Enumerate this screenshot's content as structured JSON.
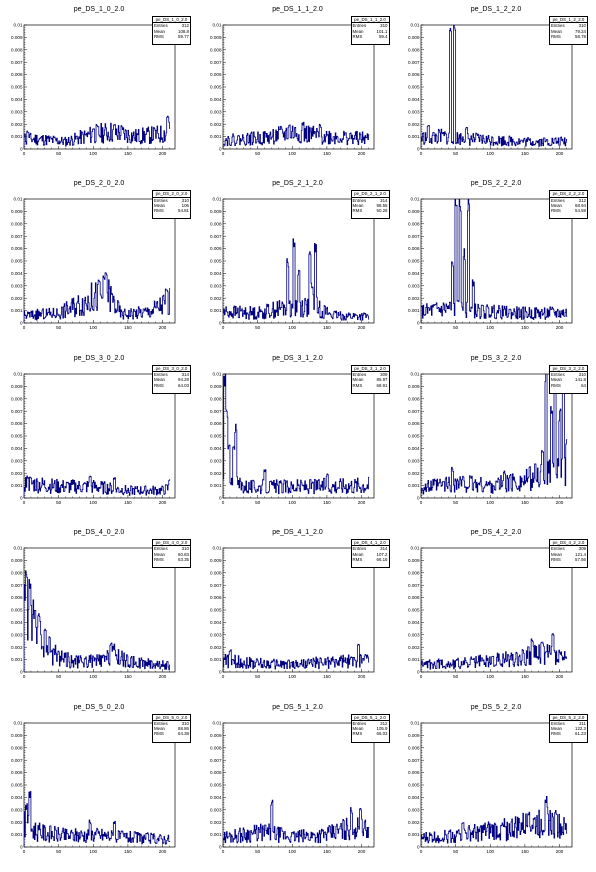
{
  "chart_data": [
    {
      "type": "line",
      "title": "pe_DS_1_0_2.0",
      "stats": {
        "name": "pe_DS_1_0_2.0",
        "entries": "312",
        "mean": "108.8",
        "rms": "59.77"
      },
      "x": [
        0,
        210
      ],
      "xlim": [
        0,
        218
      ],
      "ylim": [
        0,
        0.01
      ],
      "xticks": [
        "0",
        "50",
        "100",
        "150",
        "200"
      ],
      "yticks": [
        "0",
        "0.001",
        "0.002",
        "0.003",
        "0.004",
        "0.005",
        "0.006",
        "0.007",
        "0.008",
        "0.009",
        "0.01"
      ],
      "profile": [
        [
          0,
          0.0008
        ],
        [
          20,
          0.0008
        ],
        [
          60,
          0.0006
        ],
        [
          100,
          0.0012
        ],
        [
          130,
          0.0014
        ],
        [
          160,
          0.001
        ],
        [
          200,
          0.0012
        ],
        [
          215,
          0.0015
        ]
      ],
      "spikes": [
        [
          5,
          0.0015
        ],
        [
          100,
          0.0018
        ],
        [
          130,
          0.002
        ],
        [
          207,
          0.0028
        ]
      ],
      "seed": 11
    },
    {
      "type": "line",
      "title": "pe_DS_1_1_2.0",
      "stats": {
        "name": "pe_DS_1_1_2.0",
        "entries": "310",
        "mean": "101.1",
        "rms": "59.4"
      },
      "x": [
        0,
        210
      ],
      "xlim": [
        0,
        218
      ],
      "ylim": [
        0,
        0.01
      ],
      "xticks": [
        "0",
        "50",
        "100",
        "150",
        "200"
      ],
      "yticks": [
        "0",
        "0.001",
        "0.002",
        "0.003",
        "0.004",
        "0.005",
        "0.006",
        "0.007",
        "0.008",
        "0.009",
        "0.01"
      ],
      "profile": [
        [
          0,
          0.0007
        ],
        [
          60,
          0.0009
        ],
        [
          100,
          0.0013
        ],
        [
          150,
          0.001
        ],
        [
          215,
          0.0008
        ]
      ],
      "spikes": [
        [
          95,
          0.002
        ],
        [
          115,
          0.0022
        ],
        [
          140,
          0.002
        ]
      ],
      "seed": 22
    },
    {
      "type": "line",
      "title": "pe_DS_1_2_2.0",
      "stats": {
        "name": "pe_DS_1_2_2.0",
        "entries": "310",
        "mean": "79.24",
        "rms": "58.78"
      },
      "x": [
        0,
        210
      ],
      "xlim": [
        0,
        218
      ],
      "ylim": [
        0,
        0.01
      ],
      "xticks": [
        "0",
        "50",
        "100",
        "150",
        "200"
      ],
      "yticks": [
        "0",
        "0.001",
        "0.002",
        "0.003",
        "0.004",
        "0.005",
        "0.006",
        "0.007",
        "0.008",
        "0.009",
        "0.01"
      ],
      "profile": [
        [
          0,
          0.0009
        ],
        [
          30,
          0.001
        ],
        [
          70,
          0.0008
        ],
        [
          150,
          0.0006
        ],
        [
          215,
          0.0006
        ]
      ],
      "spikes": [
        [
          10,
          0.002
        ],
        [
          42,
          0.0105
        ],
        [
          48,
          0.0105
        ],
        [
          65,
          0.0018
        ]
      ],
      "seed": 33
    },
    {
      "type": "line",
      "title": "pe_DS_2_0_2.0",
      "stats": {
        "name": "pe_DS_2_0_2.0",
        "entries": "310",
        "mean": "106",
        "rms": "54.81"
      },
      "x": [
        0,
        210
      ],
      "xlim": [
        0,
        218
      ],
      "ylim": [
        0,
        0.01
      ],
      "xticks": [
        "0",
        "50",
        "100",
        "150",
        "200"
      ],
      "yticks": [
        "0",
        "0.001",
        "0.002",
        "0.003",
        "0.004",
        "0.005",
        "0.006",
        "0.007",
        "0.008",
        "0.009",
        "0.01"
      ],
      "profile": [
        [
          0,
          0.0006
        ],
        [
          50,
          0.0008
        ],
        [
          90,
          0.0018
        ],
        [
          120,
          0.0025
        ],
        [
          140,
          0.0007
        ],
        [
          180,
          0.0009
        ],
        [
          200,
          0.0015
        ],
        [
          215,
          0.0018
        ]
      ],
      "spikes": [
        [
          108,
          0.0035
        ],
        [
          118,
          0.0043
        ],
        [
          205,
          0.0028
        ]
      ],
      "seed": 44
    },
    {
      "type": "line",
      "title": "pe_DS_2_1_2.0",
      "stats": {
        "name": "pe_DS_2_1_2.0",
        "entries": "314",
        "mean": "98.55",
        "rms": "50.26"
      },
      "x": [
        0,
        210
      ],
      "xlim": [
        0,
        218
      ],
      "ylim": [
        0,
        0.01
      ],
      "xticks": [
        "0",
        "50",
        "100",
        "150",
        "200"
      ],
      "yticks": [
        "0",
        "0.001",
        "0.002",
        "0.003",
        "0.004",
        "0.005",
        "0.006",
        "0.007",
        "0.008",
        "0.009",
        "0.01"
      ],
      "profile": [
        [
          0,
          0.0009
        ],
        [
          50,
          0.0008
        ],
        [
          85,
          0.0012
        ],
        [
          130,
          0.0014
        ],
        [
          160,
          0.0006
        ],
        [
          215,
          0.0005
        ]
      ],
      "spikes": [
        [
          93,
          0.0052
        ],
        [
          102,
          0.0068
        ],
        [
          109,
          0.0045
        ],
        [
          125,
          0.0058
        ],
        [
          133,
          0.0067
        ],
        [
          128,
          0.0033
        ]
      ],
      "seed": 55
    },
    {
      "type": "line",
      "title": "pe_DS_2_2_2.0",
      "stats": {
        "name": "pe_DS_2_2_2.0",
        "entries": "312",
        "mean": "68.94",
        "rms": "54.59"
      },
      "x": [
        0,
        210
      ],
      "xlim": [
        0,
        218
      ],
      "ylim": [
        0,
        0.01
      ],
      "xticks": [
        "0",
        "50",
        "100",
        "150",
        "200"
      ],
      "yticks": [
        "0",
        "0.001",
        "0.002",
        "0.003",
        "0.004",
        "0.005",
        "0.006",
        "0.007",
        "0.008",
        "0.009",
        "0.01"
      ],
      "profile": [
        [
          0,
          0.0009
        ],
        [
          40,
          0.0012
        ],
        [
          70,
          0.001
        ],
        [
          130,
          0.0008
        ],
        [
          215,
          0.0008
        ]
      ],
      "spikes": [
        [
          45,
          0.0052
        ],
        [
          50,
          0.0105
        ],
        [
          56,
          0.0105
        ],
        [
          62,
          0.006
        ],
        [
          68,
          0.0105
        ],
        [
          75,
          0.0035
        ]
      ],
      "seed": 66
    },
    {
      "type": "line",
      "title": "pe_DS_3_0_2.0",
      "stats": {
        "name": "pe_DS_3_0_2.0",
        "entries": "314",
        "mean": "94.28",
        "rms": "64.03"
      },
      "x": [
        0,
        210
      ],
      "xlim": [
        0,
        218
      ],
      "ylim": [
        0,
        0.01
      ],
      "xticks": [
        "0",
        "50",
        "100",
        "150",
        "200"
      ],
      "yticks": [
        "0",
        "0.001",
        "0.002",
        "0.003",
        "0.004",
        "0.005",
        "0.006",
        "0.007",
        "0.008",
        "0.009",
        "0.01"
      ],
      "profile": [
        [
          0,
          0.0012
        ],
        [
          50,
          0.0009
        ],
        [
          100,
          0.0009
        ],
        [
          150,
          0.0006
        ],
        [
          200,
          0.0006
        ],
        [
          215,
          0.0009
        ]
      ],
      "spikes": [
        [
          5,
          0.0018
        ],
        [
          95,
          0.0018
        ],
        [
          130,
          0.0017
        ],
        [
          210,
          0.0016
        ]
      ],
      "seed": 77
    },
    {
      "type": "line",
      "title": "pe_DS_3_1_2.0",
      "stats": {
        "name": "pe_DS_3_1_2.0",
        "entries": "309",
        "mean": "85.97",
        "rms": "68.91"
      },
      "x": [
        0,
        210
      ],
      "xlim": [
        0,
        218
      ],
      "ylim": [
        0,
        0.01
      ],
      "xticks": [
        "0",
        "50",
        "100",
        "150",
        "200"
      ],
      "yticks": [
        "0",
        "0.001",
        "0.002",
        "0.003",
        "0.004",
        "0.005",
        "0.006",
        "0.007",
        "0.008",
        "0.009",
        "0.01"
      ],
      "profile": [
        [
          0,
          0.0012
        ],
        [
          40,
          0.0009
        ],
        [
          100,
          0.0009
        ],
        [
          160,
          0.001
        ],
        [
          215,
          0.0011
        ]
      ],
      "spikes": [
        [
          2,
          0.0105
        ],
        [
          5,
          0.0075
        ],
        [
          8,
          0.0045
        ],
        [
          18,
          0.0062
        ],
        [
          15,
          0.0042
        ],
        [
          60,
          0.0023
        ],
        [
          150,
          0.002
        ]
      ],
      "seed": 88
    },
    {
      "type": "line",
      "title": "pe_DS_3_2_2.0",
      "stats": {
        "name": "pe_DS_3_2_2.0",
        "entries": "310",
        "mean": "141.8",
        "rms": "64"
      },
      "x": [
        0,
        210
      ],
      "xlim": [
        0,
        218
      ],
      "ylim": [
        0,
        0.01
      ],
      "xticks": [
        "0",
        "50",
        "100",
        "150",
        "200"
      ],
      "yticks": [
        "0",
        "0.001",
        "0.002",
        "0.003",
        "0.004",
        "0.005",
        "0.006",
        "0.007",
        "0.008",
        "0.009",
        "0.01"
      ],
      "profile": [
        [
          0,
          0.0008
        ],
        [
          50,
          0.0012
        ],
        [
          100,
          0.001
        ],
        [
          150,
          0.0014
        ],
        [
          175,
          0.002
        ],
        [
          215,
          0.002
        ]
      ],
      "spikes": [
        [
          45,
          0.0025
        ],
        [
          120,
          0.0022
        ],
        [
          175,
          0.004
        ],
        [
          180,
          0.0105
        ],
        [
          188,
          0.008
        ],
        [
          193,
          0.0105
        ],
        [
          200,
          0.0072
        ],
        [
          205,
          0.0105
        ],
        [
          210,
          0.005
        ]
      ],
      "seed": 99
    },
    {
      "type": "line",
      "title": "pe_DS_4_0_2.0",
      "stats": {
        "name": "pe_DS_4_0_2.0",
        "entries": "310",
        "mean": "60.83",
        "rms": "63.35"
      },
      "x": [
        0,
        210
      ],
      "xlim": [
        0,
        218
      ],
      "ylim": [
        0,
        0.01
      ],
      "xticks": [
        "0",
        "50",
        "100",
        "150",
        "200"
      ],
      "yticks": [
        "0",
        "0.001",
        "0.002",
        "0.003",
        "0.004",
        "0.005",
        "0.006",
        "0.007",
        "0.008",
        "0.009",
        "0.01"
      ],
      "profile": [
        [
          0,
          0.006
        ],
        [
          10,
          0.004
        ],
        [
          25,
          0.0025
        ],
        [
          40,
          0.0016
        ],
        [
          70,
          0.0008
        ],
        [
          115,
          0.0009
        ],
        [
          130,
          0.0014
        ],
        [
          150,
          0.0008
        ],
        [
          215,
          0.0005
        ]
      ],
      "spikes": [
        [
          3,
          0.0082
        ],
        [
          8,
          0.0072
        ],
        [
          15,
          0.005
        ],
        [
          22,
          0.0045
        ],
        [
          30,
          0.0035
        ],
        [
          125,
          0.0025
        ]
      ],
      "seed": 111
    },
    {
      "type": "line",
      "title": "pe_DS_4_1_2.0",
      "stats": {
        "name": "pe_DS_4_1_2.0",
        "entries": "314",
        "mean": "107.2",
        "rms": "66.16"
      },
      "x": [
        0,
        210
      ],
      "xlim": [
        0,
        218
      ],
      "ylim": [
        0,
        0.01
      ],
      "xticks": [
        "0",
        "50",
        "100",
        "150",
        "200"
      ],
      "yticks": [
        "0",
        "0.001",
        "0.002",
        "0.003",
        "0.004",
        "0.005",
        "0.006",
        "0.007",
        "0.008",
        "0.009",
        "0.01"
      ],
      "profile": [
        [
          0,
          0.0009
        ],
        [
          50,
          0.0007
        ],
        [
          100,
          0.0006
        ],
        [
          150,
          0.0008
        ],
        [
          215,
          0.0009
        ]
      ],
      "spikes": [
        [
          10,
          0.0018
        ],
        [
          195,
          0.0025
        ],
        [
          205,
          0.0015
        ]
      ],
      "seed": 122
    },
    {
      "type": "line",
      "title": "pe_DS_4_2_2.0",
      "stats": {
        "name": "pe_DS_4_2_2.0",
        "entries": "309",
        "mean": "121.4",
        "rms": "57.56"
      },
      "x": [
        0,
        210
      ],
      "xlim": [
        0,
        218
      ],
      "ylim": [
        0,
        0.01
      ],
      "xticks": [
        "0",
        "50",
        "100",
        "150",
        "200"
      ],
      "yticks": [
        "0",
        "0.001",
        "0.002",
        "0.003",
        "0.004",
        "0.005",
        "0.006",
        "0.007",
        "0.008",
        "0.009",
        "0.01"
      ],
      "profile": [
        [
          0,
          0.0006
        ],
        [
          60,
          0.0007
        ],
        [
          120,
          0.001
        ],
        [
          160,
          0.0014
        ],
        [
          185,
          0.0015
        ],
        [
          215,
          0.001
        ]
      ],
      "spikes": [
        [
          160,
          0.0028
        ],
        [
          190,
          0.0032
        ],
        [
          175,
          0.0025
        ]
      ],
      "seed": 133
    },
    {
      "type": "line",
      "title": "pe_DS_5_0_2.0",
      "stats": {
        "name": "pe_DS_5_0_2.0",
        "entries": "310",
        "mean": "88.86",
        "rms": "64.38"
      },
      "x": [
        0,
        210
      ],
      "xlim": [
        0,
        218
      ],
      "ylim": [
        0,
        0.01
      ],
      "xticks": [
        "0",
        "50",
        "100",
        "150",
        "200"
      ],
      "yticks": [
        "0",
        "0.001",
        "0.002",
        "0.003",
        "0.004",
        "0.005",
        "0.006",
        "0.007",
        "0.008",
        "0.009",
        "0.01"
      ],
      "profile": [
        [
          0,
          0.0018
        ],
        [
          20,
          0.0012
        ],
        [
          60,
          0.0009
        ],
        [
          100,
          0.001
        ],
        [
          140,
          0.0008
        ],
        [
          215,
          0.0006
        ]
      ],
      "spikes": [
        [
          3,
          0.0035
        ],
        [
          8,
          0.0045
        ],
        [
          95,
          0.0022
        ],
        [
          130,
          0.0022
        ]
      ],
      "seed": 144
    },
    {
      "type": "line",
      "title": "pe_DS_5_1_2.0",
      "stats": {
        "name": "pe_DS_5_1_2.0",
        "entries": "312",
        "mean": "105.9",
        "rms": "66.03"
      },
      "x": [
        0,
        210
      ],
      "xlim": [
        0,
        218
      ],
      "ylim": [
        0,
        0.01
      ],
      "xticks": [
        "0",
        "50",
        "100",
        "150",
        "200"
      ],
      "yticks": [
        "0",
        "0.001",
        "0.002",
        "0.003",
        "0.004",
        "0.005",
        "0.006",
        "0.007",
        "0.008",
        "0.009",
        "0.01"
      ],
      "profile": [
        [
          0,
          0.0008
        ],
        [
          60,
          0.0012
        ],
        [
          100,
          0.0008
        ],
        [
          150,
          0.001
        ],
        [
          185,
          0.0016
        ],
        [
          215,
          0.0012
        ]
      ],
      "spikes": [
        [
          70,
          0.0038
        ],
        [
          185,
          0.0032
        ],
        [
          198,
          0.0035
        ]
      ],
      "seed": 155
    },
    {
      "type": "line",
      "title": "pe_DS_5_2_2.0",
      "stats": {
        "name": "pe_DS_5_2_2.0",
        "entries": "311",
        "mean": "122.3",
        "rms": "61.23"
      },
      "x": [
        0,
        210
      ],
      "xlim": [
        0,
        218
      ],
      "ylim": [
        0,
        0.01
      ],
      "xticks": [
        "0",
        "50",
        "100",
        "150",
        "200"
      ],
      "yticks": [
        "0",
        "0.001",
        "0.002",
        "0.003",
        "0.004",
        "0.005",
        "0.006",
        "0.007",
        "0.008",
        "0.009",
        "0.01"
      ],
      "profile": [
        [
          0,
          0.0007
        ],
        [
          60,
          0.001
        ],
        [
          120,
          0.0014
        ],
        [
          160,
          0.0018
        ],
        [
          185,
          0.002
        ],
        [
          215,
          0.0012
        ]
      ],
      "spikes": [
        [
          60,
          0.0022
        ],
        [
          155,
          0.003
        ],
        [
          180,
          0.0042
        ],
        [
          195,
          0.003
        ]
      ],
      "seed": 166
    }
  ],
  "stats_labels": {
    "entries": "Entries",
    "mean": "Mean",
    "rms": "RMS"
  },
  "colors": {
    "line": "#000080",
    "axis": "#000000",
    "background": "#ffffff"
  }
}
